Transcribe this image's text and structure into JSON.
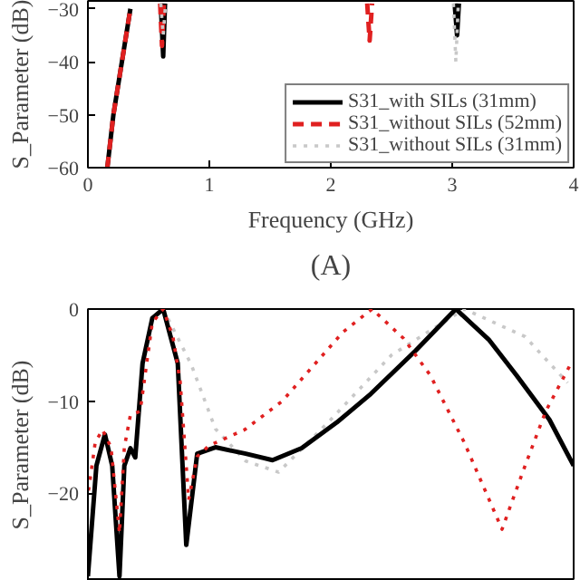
{
  "chart_data": [
    {
      "type": "line",
      "xlabel": "Frequency (GHz)",
      "ylabel": "S_Parameter (dB)",
      "annotations": [
        "(A)"
      ],
      "xlim": [
        0,
        4
      ],
      "ylim": [
        -60,
        -28.5
      ],
      "xticks": [
        0,
        1,
        2,
        3,
        4
      ],
      "yticks": [
        -60,
        -50,
        -40,
        -30
      ],
      "legend": "bottom right",
      "grid": false,
      "series": [
        {
          "name": "S31_with SILs (31mm)",
          "color": "#000000",
          "line_style": "solid",
          "x": [
            0.16,
            0.21,
            0.28,
            0.35,
            0.36,
            0.6,
            0.62,
            0.635,
            0.64,
            3.02,
            3.04,
            3.055
          ],
          "values": [
            -60,
            -50,
            -40,
            -30,
            null,
            -29,
            -39,
            -29,
            null,
            -29,
            -35,
            -29
          ]
        },
        {
          "name": "S31_without SILs (52mm)",
          "color": "#e02020",
          "line_style": "dashed",
          "x": [
            0.16,
            0.21,
            0.28,
            0.35,
            0.36,
            0.595,
            0.61,
            0.625,
            0.63,
            2.3,
            2.32,
            2.34
          ],
          "values": [
            -60,
            -50,
            -40,
            -30,
            null,
            -29,
            -37,
            -29,
            null,
            -29,
            -36,
            -29
          ]
        },
        {
          "name": "S31_without SILs (31mm)",
          "color": "#c8c8c8",
          "line_style": "dotted",
          "x": [
            0.6,
            0.62,
            0.64,
            0.65,
            3.01,
            3.03,
            3.05
          ],
          "values": [
            -29,
            -35,
            -29,
            null,
            -29,
            -40,
            -29
          ]
        }
      ]
    },
    {
      "type": "line",
      "ylabel": "S_Parameter (dB)",
      "xlim": [
        0,
        4
      ],
      "ylim": [
        -29.5,
        0
      ],
      "yticks": [
        0,
        -10,
        -20
      ],
      "tick_labels": "y",
      "grid": false,
      "series": [
        {
          "color": "#c8c8c8",
          "line_style": "dotted",
          "x": [
            0.62,
            0.85,
            1.05,
            1.3,
            1.57,
            2.0,
            2.5,
            3.1,
            3.6,
            3.95
          ],
          "values": [
            0,
            -6,
            -13,
            -16.5,
            -17.7,
            -12,
            -5,
            0,
            -3,
            -8
          ]
        },
        {
          "color": "#000000",
          "line_style": "solid",
          "x": [
            0.0,
            0.07,
            0.14,
            0.2,
            0.26,
            0.3,
            0.35,
            0.39,
            0.45,
            0.53,
            0.62,
            0.74,
            0.81,
            0.9,
            1.05,
            1.3,
            1.52,
            1.76,
            2.05,
            2.33,
            2.7,
            3.03,
            3.3,
            3.53,
            3.8,
            4.0
          ],
          "values": [
            -29,
            -17,
            -13.6,
            -17,
            -29,
            -17,
            -15.1,
            -16.1,
            -5.9,
            -1,
            0,
            -5.9,
            -25.6,
            -15.7,
            -15,
            -15.7,
            -16.4,
            -15.1,
            -12.3,
            -9.2,
            -4.5,
            0,
            -3.3,
            -7.2,
            -12,
            -17
          ]
        },
        {
          "color": "#e02020",
          "line_style": "dotted",
          "x": [
            0.005,
            0.06,
            0.12,
            0.19,
            0.26,
            0.3,
            0.35,
            0.43,
            0.53,
            0.62,
            0.7,
            0.76,
            0.83,
            0.9,
            1.0,
            1.29,
            1.6,
            1.9,
            2.1,
            2.34,
            2.6,
            2.82,
            3.1,
            3.41,
            3.6,
            3.77,
            3.99
          ],
          "values": [
            -19.7,
            -14.5,
            -13.1,
            -15,
            -24.3,
            -15,
            -11.5,
            -11.1,
            -1.5,
            0,
            -3,
            -7.9,
            -20.7,
            -16,
            -14.8,
            -13.1,
            -10,
            -5.5,
            -2.5,
            0,
            -3.2,
            -7.2,
            -14.5,
            -23.9,
            -17,
            -11.1,
            -5.6
          ]
        }
      ]
    }
  ]
}
